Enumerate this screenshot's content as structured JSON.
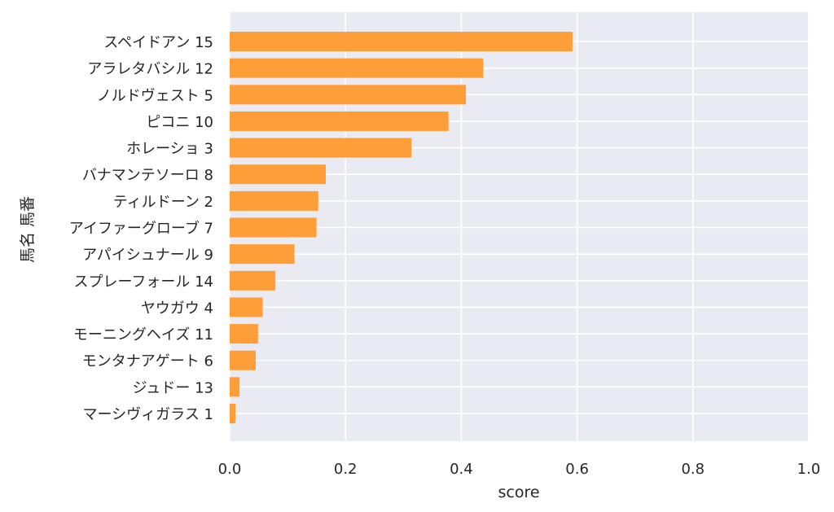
{
  "chart_data": {
    "type": "bar",
    "orientation": "horizontal",
    "categories": [
      "スペイドアン 15",
      "アラレタバシル 12",
      "ノルドヴェスト 5",
      "ピコニ 10",
      "ホレーショ 3",
      "バナマンテソーロ 8",
      "ティルドーン 2",
      "アイファーグローブ 7",
      "アパイシュナール 9",
      "スプレーフォール 14",
      "ヤウガウ 4",
      "モーニングヘイズ 11",
      "モンタナアゲート 6",
      "ジュドー 13",
      "マーシヴィガラス 1"
    ],
    "values": [
      0.592,
      0.438,
      0.408,
      0.378,
      0.314,
      0.166,
      0.153,
      0.15,
      0.112,
      0.079,
      0.057,
      0.049,
      0.045,
      0.017,
      0.01
    ],
    "xlabel": "score",
    "ylabel": "馬名 馬番",
    "xlim": [
      0,
      1.0
    ],
    "xticks": [
      "0.0",
      "0.2",
      "0.4",
      "0.6",
      "0.8",
      "1.0"
    ],
    "grid": true,
    "colors": {
      "bar": "#ff9a2e",
      "background": "#eaeaf2",
      "grid": "#ffffff"
    }
  }
}
